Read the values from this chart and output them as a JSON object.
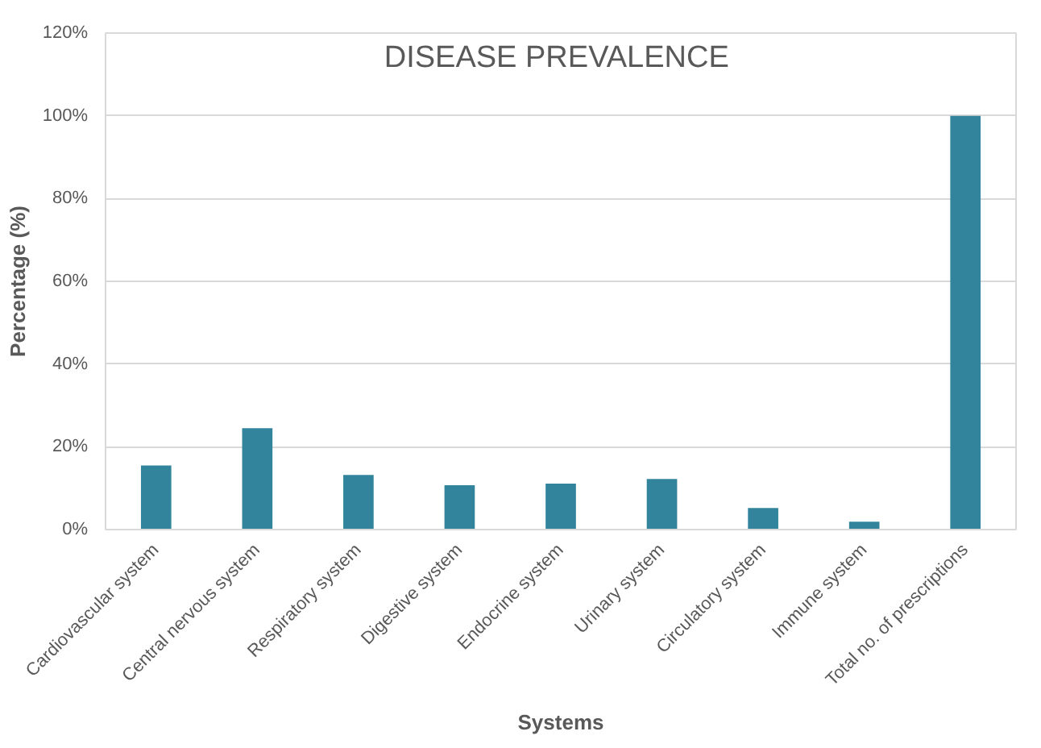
{
  "chart_data": {
    "type": "bar",
    "title": "DISEASE  PREVALENCE",
    "xlabel": "Systems",
    "ylabel": "Percentage (%)",
    "categories": [
      "Cardiovascular system",
      "Central nervous system",
      "Respiratory system",
      "Digestive system",
      "Endocrine system",
      "Urinary system",
      "Circulatory system",
      "Immune system",
      "Total no. of prescriptions"
    ],
    "values": [
      15.5,
      24.5,
      13.2,
      10.7,
      11.1,
      12.2,
      5.2,
      1.9,
      100
    ],
    "color": "#31849b",
    "ylim": [
      0,
      120
    ],
    "yticks": [
      {
        "value": 0,
        "label": "0%"
      },
      {
        "value": 20,
        "label": "20%"
      },
      {
        "value": 40,
        "label": "40%"
      },
      {
        "value": 60,
        "label": "60%"
      },
      {
        "value": 80,
        "label": "80%"
      },
      {
        "value": 100,
        "label": "100%"
      },
      {
        "value": 120,
        "label": "120%"
      }
    ],
    "grid": "y"
  }
}
